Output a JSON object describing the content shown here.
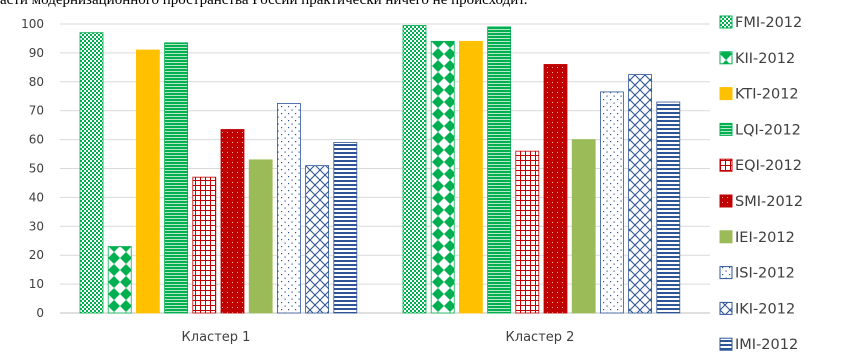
{
  "header_text": "асти модернизационного пространства России практически ничего не происходит.",
  "chart_data": {
    "type": "bar",
    "categories": [
      "Кластер 1",
      "Кластер 2"
    ],
    "ylim": [
      0,
      100
    ],
    "yticks": [
      0,
      10,
      20,
      30,
      40,
      50,
      60,
      70,
      80,
      90,
      100
    ],
    "legend_position": "right",
    "grid": true,
    "series": [
      {
        "name": "FMI-2012",
        "values": [
          97,
          99.5
        ],
        "color": "#00b050",
        "pattern": "checker"
      },
      {
        "name": "KII-2012",
        "values": [
          23,
          94
        ],
        "color": "#00b050",
        "pattern": "diamond"
      },
      {
        "name": "KTI-2012",
        "values": [
          91,
          94
        ],
        "color": "#ffc000",
        "pattern": "solid"
      },
      {
        "name": "LQI-2012",
        "values": [
          93.5,
          99
        ],
        "color": "#00b050",
        "pattern": "hstripe"
      },
      {
        "name": "EQI-2012",
        "values": [
          47,
          56
        ],
        "color": "#c00000",
        "pattern": "grid"
      },
      {
        "name": "SMI-2012",
        "values": [
          63.5,
          86
        ],
        "color": "#c00000",
        "pattern": "dots"
      },
      {
        "name": "IEI-2012",
        "values": [
          53,
          60
        ],
        "color": "#9bbb59",
        "pattern": "solid"
      },
      {
        "name": "ISI-2012",
        "values": [
          72.5,
          76.5
        ],
        "color": "#2e5597",
        "pattern": "sparsedots"
      },
      {
        "name": "IKI-2012",
        "values": [
          51,
          82.5
        ],
        "color": "#2e5597",
        "pattern": "weave"
      },
      {
        "name": "IMI-2012",
        "values": [
          59,
          73
        ],
        "color": "#2e5597",
        "pattern": "hlines"
      }
    ]
  }
}
